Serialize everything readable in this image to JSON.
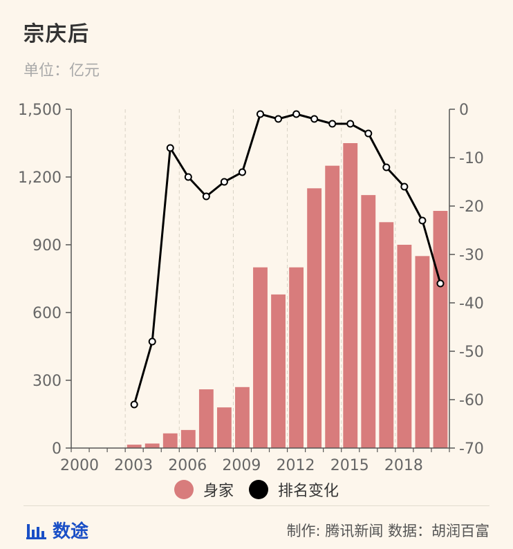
{
  "header": {
    "title": "宗庆后",
    "unit": "单位：亿元"
  },
  "legend": {
    "items": [
      {
        "label": "身家",
        "color": "#d87c7c"
      },
      {
        "label": "排名变化",
        "color": "#000000"
      }
    ]
  },
  "footer": {
    "logo_text": "数途",
    "credit": "制作: 腾讯新闻  数据：胡润百富"
  },
  "chart_data": {
    "type": "bar+line",
    "x_tick_labels": [
      "2000",
      "2003",
      "2006",
      "2009",
      "2012",
      "2015",
      "2018"
    ],
    "y_left": {
      "min": 0,
      "max": 1500,
      "ticks": [
        "0",
        "300",
        "600",
        "900",
        "1,200",
        "1,500"
      ]
    },
    "y_right": {
      "min": -70,
      "max": 0,
      "ticks": [
        "0",
        "-10",
        "-20",
        "-30",
        "-40",
        "-50",
        "-60",
        "-70"
      ]
    },
    "years": [
      2000,
      2001,
      2002,
      2003,
      2004,
      2005,
      2006,
      2007,
      2008,
      2009,
      2010,
      2011,
      2012,
      2013,
      2014,
      2015,
      2016,
      2017,
      2018,
      2019,
      2020
    ],
    "bar_series": {
      "name": "身家",
      "color": "#d87c7c",
      "values": [
        null,
        null,
        null,
        15,
        20,
        65,
        80,
        260,
        180,
        270,
        800,
        680,
        800,
        1150,
        1250,
        1350,
        1120,
        1000,
        900,
        850,
        1050
      ]
    },
    "line_series": {
      "name": "排名变化",
      "color": "#000000",
      "values": [
        null,
        null,
        null,
        -61,
        -48,
        -8,
        -14,
        -18,
        -15,
        -13,
        -1,
        -2,
        -1,
        -2,
        -3,
        -3,
        -5,
        -12,
        -16,
        -23,
        -36
      ]
    },
    "grid": "vertical-dashed"
  }
}
